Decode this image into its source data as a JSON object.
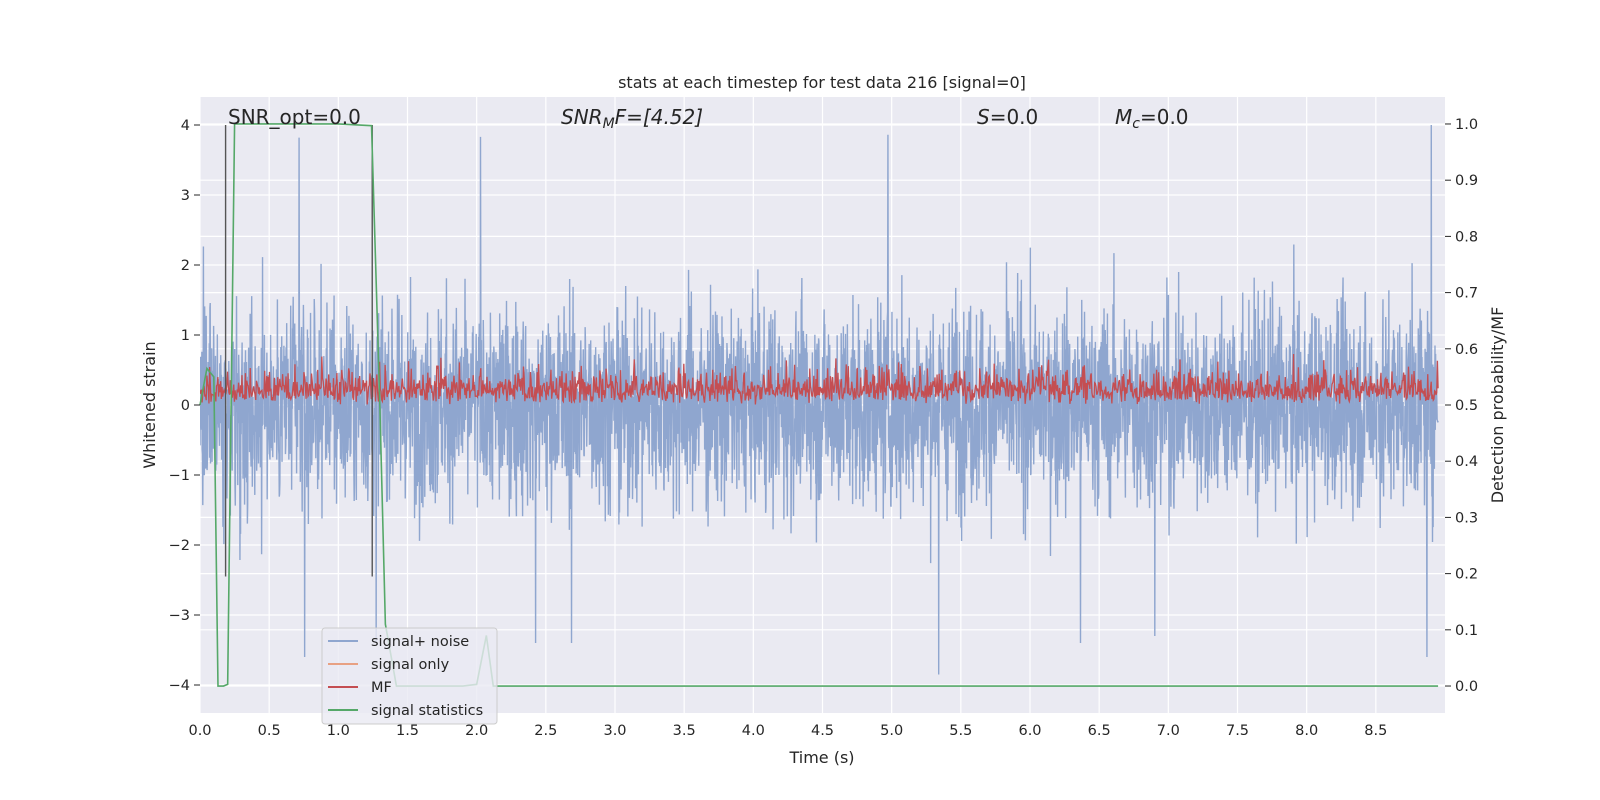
{
  "chart_data": {
    "type": "line",
    "title": "stats at each timestep for test data 216 [signal=0]",
    "xlabel": "Time (s)",
    "ylabel": "Whitened strain",
    "ylabel_right": "Detection probability/MF",
    "xlim": [
      0.0,
      9.0
    ],
    "ylim": [
      -4.4,
      4.4
    ],
    "ylim_right": [
      -0.048,
      1.048
    ],
    "xticks": [
      "0.0",
      "0.5",
      "1.0",
      "1.5",
      "2.0",
      "2.5",
      "3.0",
      "3.5",
      "4.0",
      "4.5",
      "5.0",
      "5.5",
      "6.0",
      "6.5",
      "7.0",
      "7.5",
      "8.0",
      "8.5"
    ],
    "yticks": [
      "−4",
      "−3",
      "−2",
      "−1",
      "0",
      "1",
      "2",
      "3",
      "4"
    ],
    "yticks_right": [
      "0.0",
      "0.1",
      "0.2",
      "0.3",
      "0.4",
      "0.5",
      "0.6",
      "0.7",
      "0.8",
      "0.9",
      "1.0"
    ],
    "grid": true,
    "background": "#eaeaf2",
    "annotations": {
      "snr_opt": "SNR_opt=0.0",
      "snr_mf_sym": "SNR",
      "snr_mf_sub": "M",
      "snr_mf_rest": "F=[4.52]",
      "s_sym": "S",
      "s_rest": "=0.0",
      "mc_sym": "M",
      "mc_sub": "c",
      "mc_rest": "=0.0"
    },
    "legend": {
      "placement": "lower left",
      "entries": [
        {
          "label": "signal+ noise",
          "color": "#8fa6cf"
        },
        {
          "label": "signal only",
          "color": "#e8a183"
        },
        {
          "label": "MF",
          "color": "#c44e52"
        },
        {
          "label": "signal statistics",
          "color": "#55a868"
        }
      ]
    },
    "series": [
      {
        "name": "signal+ noise",
        "color": "#8fa6cf",
        "axis": "left",
        "description": "dense noise trace, mostly within ±2.3, spikes up to ~4.0 and down to ~-3.8",
        "spikes": [
          [
            0.72,
            3.82
          ],
          [
            0.76,
            -3.6
          ],
          [
            2.04,
            3.83
          ],
          [
            2.44,
            -3.4
          ],
          [
            5.0,
            3.86
          ],
          [
            5.37,
            -3.85
          ],
          [
            6.4,
            -3.4
          ],
          [
            6.94,
            -3.3
          ],
          [
            8.95,
            4.0
          ],
          [
            8.92,
            -3.6
          ],
          [
            1.28,
            -3.4
          ],
          [
            2.7,
            -3.4
          ]
        ]
      },
      {
        "name": "MF",
        "color": "#c44e52",
        "axis": "right",
        "description": "matched filter output fluctuating between ~0.49 and ~0.6 on the right axis"
      },
      {
        "name": "signal statistics",
        "color": "#55a868",
        "axis": "right",
        "x": [
          0.0,
          0.05,
          0.1,
          0.13,
          0.17,
          0.2,
          0.25,
          1.0,
          1.24,
          1.3,
          1.34,
          1.42,
          1.9,
          2.0,
          2.07,
          2.12,
          2.25,
          8.95
        ],
        "y": [
          0.5,
          0.565,
          0.55,
          0.0,
          0.0,
          0.003,
          1.0,
          1.0,
          0.997,
          0.5,
          0.11,
          0.0,
          0.0,
          0.003,
          0.09,
          0.0,
          0.0,
          0.0
        ]
      },
      {
        "name": "markers",
        "color": "#555555",
        "axis": "left",
        "vertical_lines_x": [
          0.185,
          1.245
        ]
      }
    ]
  }
}
